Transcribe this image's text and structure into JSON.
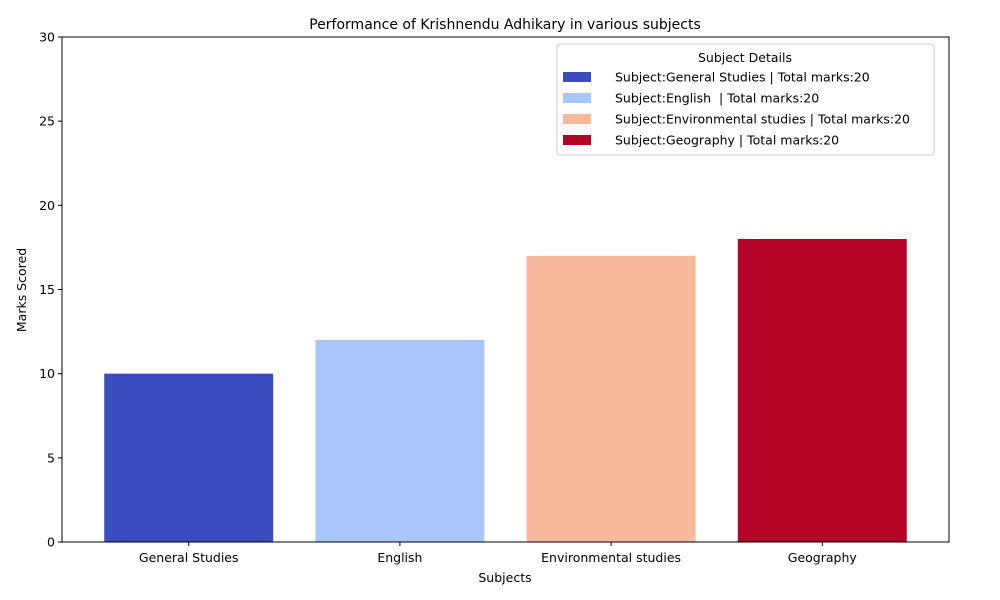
{
  "chart_data": {
    "type": "bar",
    "title": "Performance of Krishnendu Adhikary in various subjects",
    "xlabel": "Subjects",
    "ylabel": "Marks Scored",
    "categories": [
      "General Studies",
      "English",
      "Environmental studies",
      "Geography"
    ],
    "values": [
      10,
      12,
      17,
      18
    ],
    "colors": [
      "#3b4cc0",
      "#aac7fd",
      "#f7b89c",
      "#b40426"
    ],
    "ylim": [
      0,
      30
    ],
    "yticks": [
      "0",
      "5",
      "10",
      "15",
      "20",
      "25",
      "30"
    ],
    "grid": false,
    "legend": {
      "title": "Subject Details",
      "placement": "top-right",
      "entries": [
        "Subject:General Studies | Total marks:20",
        "Subject:English  | Total marks:20",
        "Subject:Environmental studies | Total marks:20",
        "Subject:Geography | Total marks:20"
      ]
    }
  }
}
